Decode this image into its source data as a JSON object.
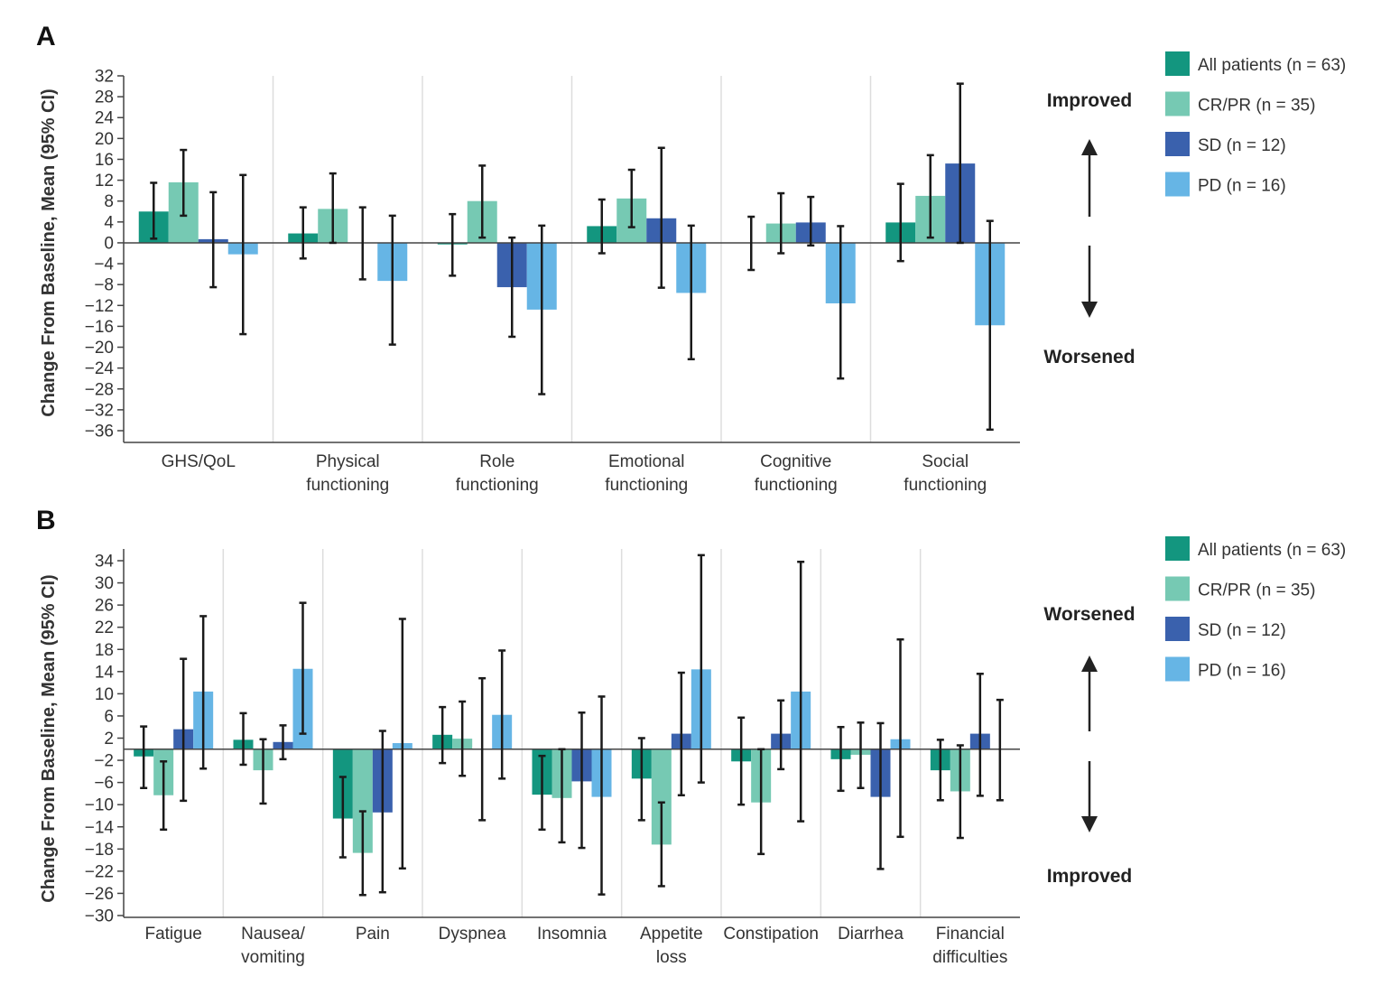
{
  "legend": [
    {
      "name": "All patients (n = 63)",
      "color": "#13967f"
    },
    {
      "name": "CR/PR (n = 35)",
      "color": "#76c9b3"
    },
    {
      "name": "SD (n = 12)",
      "color": "#3a61ad"
    },
    {
      "name": "PD (n = 16)",
      "color": "#66b5e5"
    }
  ],
  "chart_data": [
    {
      "type": "bar",
      "panel": "A",
      "ylabel": "Change From Baseline, Mean (95% CI)",
      "direction_up": "Improved",
      "direction_down": "Worsened",
      "yticks": [
        32,
        28,
        24,
        20,
        16,
        12,
        8,
        4,
        0,
        -4,
        -8,
        -12,
        -16,
        -20,
        -24,
        -28,
        -32,
        -36
      ],
      "ylim": [
        -36,
        32
      ],
      "grid": false,
      "legend_position": "right",
      "categories": [
        "GHS/QoL",
        "Physical functioning",
        "Role functioning",
        "Emotional functioning",
        "Cognitive functioning",
        "Social functioning"
      ],
      "category_lines": [
        [
          "GHS/QoL"
        ],
        [
          "Physical",
          "functioning"
        ],
        [
          "Role",
          "functioning"
        ],
        [
          "Emotional",
          "functioning"
        ],
        [
          "Cognitive",
          "functioning"
        ],
        [
          "Social",
          "functioning"
        ]
      ],
      "series": [
        {
          "name": "All patients (n = 63)",
          "values": [
            6,
            1.8,
            -0.3,
            3.2,
            0,
            3.9
          ],
          "ci_low": [
            0.8,
            -3,
            -6.3,
            -2,
            -5.2,
            -3.5
          ],
          "ci_high": [
            11.5,
            6.8,
            5.5,
            8.3,
            5,
            11.3
          ]
        },
        {
          "name": "CR/PR (n = 35)",
          "values": [
            11.6,
            6.5,
            8,
            8.5,
            3.7,
            9
          ],
          "ci_low": [
            5.2,
            0,
            1,
            3,
            -2,
            1
          ],
          "ci_high": [
            17.8,
            13.3,
            14.8,
            14,
            9.5,
            16.8
          ]
        },
        {
          "name": "SD (n = 12)",
          "values": [
            0.7,
            0,
            -8.5,
            4.7,
            3.9,
            15.2
          ],
          "ci_low": [
            -8.5,
            -7,
            -18,
            -8.6,
            -0.5,
            0
          ],
          "ci_high": [
            9.7,
            6.8,
            1,
            18.2,
            8.8,
            30.5
          ]
        },
        {
          "name": "PD (n = 16)",
          "values": [
            -2.2,
            -7.3,
            -12.8,
            -9.6,
            -11.6,
            -15.8
          ],
          "ci_low": [
            -17.5,
            -19.5,
            -29,
            -22.3,
            -26,
            -35.8
          ],
          "ci_high": [
            13,
            5.2,
            3.3,
            3.3,
            3.2,
            4.2
          ]
        }
      ]
    },
    {
      "type": "bar",
      "panel": "B",
      "ylabel": "Change From Baseline, Mean (95% CI)",
      "direction_up": "Worsened",
      "direction_down": "Improved",
      "yticks": [
        34,
        30,
        26,
        22,
        18,
        14,
        10,
        6,
        2,
        -2,
        -6,
        -10,
        -14,
        -18,
        -22,
        -26,
        -30
      ],
      "ylim": [
        -30,
        34
      ],
      "grid": false,
      "legend_position": "right",
      "categories": [
        "Fatigue",
        "Nausea/ vomiting",
        "Pain",
        "Dyspnea",
        "Insomnia",
        "Appetite loss",
        "Constipation",
        "Diarrhea",
        "Financial difficulties"
      ],
      "category_lines": [
        [
          "Fatigue"
        ],
        [
          "Nausea/",
          "vomiting"
        ],
        [
          "Pain"
        ],
        [
          "Dyspnea"
        ],
        [
          "Insomnia"
        ],
        [
          "Appetite",
          "loss"
        ],
        [
          "Constipation"
        ],
        [
          "Diarrhea"
        ],
        [
          "Financial",
          "difficulties"
        ]
      ],
      "series": [
        {
          "name": "All patients (n = 63)",
          "values": [
            -1.3,
            1.7,
            -12.5,
            2.6,
            -8.2,
            -5.3,
            -2.2,
            -1.8,
            -3.8
          ],
          "ci_low": [
            -7,
            -2.8,
            -19.5,
            -2.5,
            -14.5,
            -12.8,
            -10,
            -7.5,
            -9.2
          ],
          "ci_high": [
            4.1,
            6.5,
            -5,
            7.6,
            -1.2,
            2,
            5.7,
            4,
            1.7
          ]
        },
        {
          "name": "CR/PR (n = 35)",
          "values": [
            -8.3,
            -3.8,
            -18.7,
            1.9,
            -8.8,
            -17.2,
            -9.6,
            -1,
            -7.6
          ],
          "ci_low": [
            -14.5,
            -9.8,
            -26.3,
            -4.8,
            -16.8,
            -24.7,
            -18.9,
            -7,
            -16
          ],
          "ci_high": [
            -2.2,
            1.8,
            -11.2,
            8.6,
            0,
            -9.6,
            0,
            4.8,
            0.7
          ]
        },
        {
          "name": "SD (n = 12)",
          "values": [
            3.6,
            1.3,
            -11.4,
            0,
            -5.8,
            2.8,
            2.8,
            -8.6,
            2.8
          ],
          "ci_low": [
            -9.3,
            -1.8,
            -25.8,
            -12.8,
            -17.8,
            -8.3,
            -3.6,
            -21.6,
            -8.4
          ],
          "ci_high": [
            16.3,
            4.3,
            3.3,
            12.8,
            6.6,
            13.8,
            8.8,
            4.7,
            13.6
          ]
        },
        {
          "name": "PD (n = 16)",
          "values": [
            10.4,
            14.5,
            1.1,
            6.2,
            -8.6,
            14.4,
            10.4,
            1.8,
            0
          ],
          "ci_low": [
            -3.5,
            2.8,
            -21.5,
            -5.3,
            -26.2,
            -6,
            -13,
            -15.8,
            -9.2
          ],
          "ci_high": [
            24,
            26.4,
            23.5,
            17.8,
            9.5,
            35,
            33.8,
            19.8,
            8.9
          ]
        }
      ]
    }
  ]
}
